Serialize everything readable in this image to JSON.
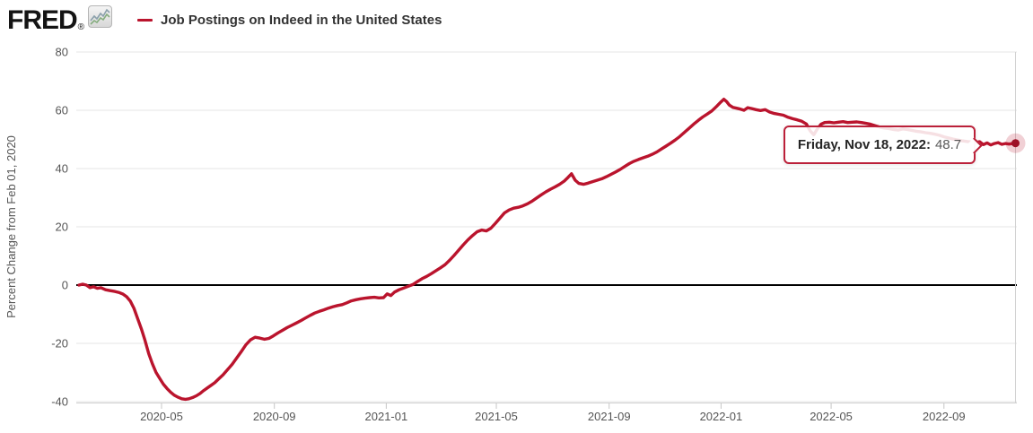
{
  "header": {
    "logo_text": "FRED",
    "logo_registered": "®",
    "legend_label": "Job Postings on Indeed in the United States"
  },
  "tooltip": {
    "date_label": "Friday, Nov 18, 2022:",
    "value": "48.7"
  },
  "chart_data": {
    "type": "line",
    "title": "Job Postings on Indeed in the United States",
    "ylabel": "Percent Change from Feb 01, 2020",
    "xlabel": "",
    "ylim": [
      -40,
      80
    ],
    "yticks": [
      80,
      60,
      40,
      20,
      0,
      -20,
      -40
    ],
    "x_range": [
      "2020-02-01",
      "2022-11-18"
    ],
    "xticks": [
      {
        "date": "2020-05-01",
        "label": "2020-05"
      },
      {
        "date": "2020-09-01",
        "label": "2020-09"
      },
      {
        "date": "2021-01-01",
        "label": "2021-01"
      },
      {
        "date": "2021-05-01",
        "label": "2021-05"
      },
      {
        "date": "2021-09-01",
        "label": "2021-09"
      },
      {
        "date": "2022-01-01",
        "label": "2022-01"
      },
      {
        "date": "2022-05-01",
        "label": "2022-05"
      },
      {
        "date": "2022-09-01",
        "label": "2022-09"
      }
    ],
    "grid": true,
    "zero_line": true,
    "legend_position": "top",
    "colors": {
      "line": "#ba142d",
      "dot": "#9c1126",
      "halo": "rgba(186,20,45,0.2)",
      "grid": "#e6e6e6",
      "zero_line": "#000000",
      "axis": "#cfcfcf",
      "tick": "#c6c6c6",
      "label": "#555555",
      "crosshair": "#d2d2d2"
    },
    "last_point": {
      "date": "2022-11-18",
      "value": 48.7
    },
    "series": [
      {
        "name": "Job Postings on Indeed in the United States",
        "points": [
          [
            "2020-02-01",
            0.0
          ],
          [
            "2020-02-05",
            0.3
          ],
          [
            "2020-02-09",
            0.0
          ],
          [
            "2020-02-13",
            -0.9
          ],
          [
            "2020-02-17",
            -0.6
          ],
          [
            "2020-02-21",
            -1.1
          ],
          [
            "2020-02-25",
            -0.9
          ],
          [
            "2020-03-01",
            -1.6
          ],
          [
            "2020-03-06",
            -1.9
          ],
          [
            "2020-03-11",
            -2.2
          ],
          [
            "2020-03-16",
            -2.6
          ],
          [
            "2020-03-20",
            -3.1
          ],
          [
            "2020-03-24",
            -4.0
          ],
          [
            "2020-03-28",
            -5.5
          ],
          [
            "2020-04-01",
            -8.0
          ],
          [
            "2020-04-05",
            -11.5
          ],
          [
            "2020-04-09",
            -15.0
          ],
          [
            "2020-04-13",
            -19.0
          ],
          [
            "2020-04-17",
            -23.5
          ],
          [
            "2020-04-21",
            -27.0
          ],
          [
            "2020-04-25",
            -30.0
          ],
          [
            "2020-04-29",
            -32.0
          ],
          [
            "2020-05-03",
            -34.0
          ],
          [
            "2020-05-07",
            -35.5
          ],
          [
            "2020-05-11",
            -36.8
          ],
          [
            "2020-05-15",
            -37.8
          ],
          [
            "2020-05-19",
            -38.5
          ],
          [
            "2020-05-23",
            -39.0
          ],
          [
            "2020-05-27",
            -39.2
          ],
          [
            "2020-05-31",
            -39.0
          ],
          [
            "2020-06-04",
            -38.6
          ],
          [
            "2020-06-08",
            -38.0
          ],
          [
            "2020-06-12",
            -37.2
          ],
          [
            "2020-06-16",
            -36.2
          ],
          [
            "2020-06-20",
            -35.3
          ],
          [
            "2020-06-24",
            -34.4
          ],
          [
            "2020-06-28",
            -33.5
          ],
          [
            "2020-07-02",
            -32.3
          ],
          [
            "2020-07-07",
            -30.8
          ],
          [
            "2020-07-12",
            -29.0
          ],
          [
            "2020-07-17",
            -27.2
          ],
          [
            "2020-07-22",
            -25.0
          ],
          [
            "2020-07-27",
            -22.8
          ],
          [
            "2020-08-01",
            -20.5
          ],
          [
            "2020-08-06",
            -18.8
          ],
          [
            "2020-08-11",
            -17.9
          ],
          [
            "2020-08-16",
            -18.2
          ],
          [
            "2020-08-21",
            -18.6
          ],
          [
            "2020-08-26",
            -18.3
          ],
          [
            "2020-08-31",
            -17.4
          ],
          [
            "2020-09-05",
            -16.4
          ],
          [
            "2020-09-10",
            -15.5
          ],
          [
            "2020-09-15",
            -14.6
          ],
          [
            "2020-09-20",
            -13.8
          ],
          [
            "2020-09-25",
            -13.0
          ],
          [
            "2020-09-30",
            -12.2
          ],
          [
            "2020-10-05",
            -11.3
          ],
          [
            "2020-10-10",
            -10.4
          ],
          [
            "2020-10-15",
            -9.6
          ],
          [
            "2020-10-20",
            -9.0
          ],
          [
            "2020-10-25",
            -8.5
          ],
          [
            "2020-10-30",
            -7.9
          ],
          [
            "2020-11-04",
            -7.4
          ],
          [
            "2020-11-09",
            -7.0
          ],
          [
            "2020-11-14",
            -6.7
          ],
          [
            "2020-11-19",
            -6.1
          ],
          [
            "2020-11-24",
            -5.4
          ],
          [
            "2020-11-29",
            -5.0
          ],
          [
            "2020-12-04",
            -4.7
          ],
          [
            "2020-12-09",
            -4.5
          ],
          [
            "2020-12-14",
            -4.3
          ],
          [
            "2020-12-19",
            -4.2
          ],
          [
            "2020-12-24",
            -4.4
          ],
          [
            "2020-12-29",
            -4.3
          ],
          [
            "2021-01-02",
            -3.0
          ],
          [
            "2021-01-06",
            -3.6
          ],
          [
            "2021-01-10",
            -2.4
          ],
          [
            "2021-01-15",
            -1.6
          ],
          [
            "2021-01-20",
            -1.0
          ],
          [
            "2021-01-25",
            -0.4
          ],
          [
            "2021-01-30",
            0.2
          ],
          [
            "2021-02-04",
            1.2
          ],
          [
            "2021-02-09",
            2.2
          ],
          [
            "2021-02-14",
            3.0
          ],
          [
            "2021-02-19",
            3.9
          ],
          [
            "2021-02-24",
            4.9
          ],
          [
            "2021-03-01",
            5.9
          ],
          [
            "2021-03-06",
            7.0
          ],
          [
            "2021-03-11",
            8.5
          ],
          [
            "2021-03-16",
            10.2
          ],
          [
            "2021-03-21",
            12.0
          ],
          [
            "2021-03-26",
            13.8
          ],
          [
            "2021-03-31",
            15.5
          ],
          [
            "2021-04-05",
            17.0
          ],
          [
            "2021-04-10",
            18.3
          ],
          [
            "2021-04-15",
            18.9
          ],
          [
            "2021-04-20",
            18.6
          ],
          [
            "2021-04-25",
            19.5
          ],
          [
            "2021-04-30",
            21.2
          ],
          [
            "2021-05-05",
            23.0
          ],
          [
            "2021-05-10",
            24.8
          ],
          [
            "2021-05-15",
            25.8
          ],
          [
            "2021-05-20",
            26.4
          ],
          [
            "2021-05-25",
            26.7
          ],
          [
            "2021-05-30",
            27.2
          ],
          [
            "2021-06-04",
            27.9
          ],
          [
            "2021-06-09",
            28.8
          ],
          [
            "2021-06-14",
            29.9
          ],
          [
            "2021-06-19",
            31.0
          ],
          [
            "2021-06-24",
            32.0
          ],
          [
            "2021-06-29",
            32.9
          ],
          [
            "2021-07-04",
            33.7
          ],
          [
            "2021-07-09",
            34.6
          ],
          [
            "2021-07-14",
            35.7
          ],
          [
            "2021-07-18",
            36.9
          ],
          [
            "2021-07-22",
            38.2
          ],
          [
            "2021-07-26",
            36.0
          ],
          [
            "2021-07-30",
            34.9
          ],
          [
            "2021-08-04",
            34.6
          ],
          [
            "2021-08-09",
            35.0
          ],
          [
            "2021-08-14",
            35.5
          ],
          [
            "2021-08-19",
            36.0
          ],
          [
            "2021-08-24",
            36.5
          ],
          [
            "2021-08-29",
            37.2
          ],
          [
            "2021-09-03",
            38.0
          ],
          [
            "2021-09-08",
            38.8
          ],
          [
            "2021-09-13",
            39.7
          ],
          [
            "2021-09-18",
            40.7
          ],
          [
            "2021-09-23",
            41.7
          ],
          [
            "2021-09-28",
            42.5
          ],
          [
            "2021-10-03",
            43.1
          ],
          [
            "2021-10-08",
            43.7
          ],
          [
            "2021-10-13",
            44.2
          ],
          [
            "2021-10-18",
            44.9
          ],
          [
            "2021-10-23",
            45.7
          ],
          [
            "2021-10-28",
            46.7
          ],
          [
            "2021-11-02",
            47.7
          ],
          [
            "2021-11-07",
            48.7
          ],
          [
            "2021-11-12",
            49.8
          ],
          [
            "2021-11-17",
            51.0
          ],
          [
            "2021-11-22",
            52.4
          ],
          [
            "2021-11-27",
            53.8
          ],
          [
            "2021-12-02",
            55.2
          ],
          [
            "2021-12-07",
            56.5
          ],
          [
            "2021-12-12",
            57.7
          ],
          [
            "2021-12-17",
            58.7
          ],
          [
            "2021-12-22",
            59.8
          ],
          [
            "2021-12-27",
            61.3
          ],
          [
            "2022-01-01",
            62.9
          ],
          [
            "2022-01-04",
            63.8
          ],
          [
            "2022-01-07",
            63.0
          ],
          [
            "2022-01-10",
            61.8
          ],
          [
            "2022-01-14",
            61.0
          ],
          [
            "2022-01-18",
            60.7
          ],
          [
            "2022-01-22",
            60.4
          ],
          [
            "2022-01-26",
            60.0
          ],
          [
            "2022-01-30",
            60.9
          ],
          [
            "2022-02-03",
            60.6
          ],
          [
            "2022-02-08",
            60.2
          ],
          [
            "2022-02-13",
            59.9
          ],
          [
            "2022-02-18",
            60.2
          ],
          [
            "2022-02-23",
            59.4
          ],
          [
            "2022-02-28",
            58.9
          ],
          [
            "2022-03-05",
            58.6
          ],
          [
            "2022-03-10",
            58.3
          ],
          [
            "2022-03-15",
            57.6
          ],
          [
            "2022-03-20",
            57.1
          ],
          [
            "2022-03-25",
            56.7
          ],
          [
            "2022-03-30",
            56.2
          ],
          [
            "2022-04-04",
            55.3
          ],
          [
            "2022-04-08",
            53.0
          ],
          [
            "2022-04-12",
            51.6
          ],
          [
            "2022-04-16",
            53.6
          ],
          [
            "2022-04-20",
            55.2
          ],
          [
            "2022-04-24",
            55.8
          ],
          [
            "2022-04-29",
            55.9
          ],
          [
            "2022-05-04",
            55.7
          ],
          [
            "2022-05-09",
            55.9
          ],
          [
            "2022-05-14",
            56.1
          ],
          [
            "2022-05-19",
            55.8
          ],
          [
            "2022-05-24",
            55.9
          ],
          [
            "2022-05-29",
            56.0
          ],
          [
            "2022-06-03",
            55.8
          ],
          [
            "2022-06-08",
            55.5
          ],
          [
            "2022-06-13",
            55.2
          ],
          [
            "2022-06-18",
            54.7
          ],
          [
            "2022-06-23",
            54.2
          ],
          [
            "2022-06-28",
            53.9
          ],
          [
            "2022-07-03",
            53.7
          ],
          [
            "2022-07-08",
            53.4
          ],
          [
            "2022-07-13",
            53.2
          ],
          [
            "2022-07-18",
            53.6
          ],
          [
            "2022-07-23",
            53.4
          ],
          [
            "2022-07-28",
            53.1
          ],
          [
            "2022-08-02",
            52.8
          ],
          [
            "2022-08-07",
            52.6
          ],
          [
            "2022-08-12",
            52.3
          ],
          [
            "2022-08-17",
            52.1
          ],
          [
            "2022-08-22",
            51.8
          ],
          [
            "2022-08-27",
            51.4
          ],
          [
            "2022-09-01",
            50.9
          ],
          [
            "2022-09-06",
            50.5
          ],
          [
            "2022-09-11",
            50.1
          ],
          [
            "2022-09-16",
            49.8
          ],
          [
            "2022-09-21",
            49.5
          ],
          [
            "2022-09-26",
            49.3
          ],
          [
            "2022-10-01",
            49.1
          ],
          [
            "2022-10-06",
            49.0
          ],
          [
            "2022-10-10",
            49.2
          ],
          [
            "2022-10-14",
            48.2
          ],
          [
            "2022-10-18",
            48.8
          ],
          [
            "2022-10-22",
            48.1
          ],
          [
            "2022-10-26",
            48.6
          ],
          [
            "2022-10-30",
            48.9
          ],
          [
            "2022-11-03",
            48.3
          ],
          [
            "2022-11-07",
            48.6
          ],
          [
            "2022-11-11",
            48.4
          ],
          [
            "2022-11-15",
            48.6
          ],
          [
            "2022-11-18",
            48.7
          ]
        ]
      }
    ]
  }
}
